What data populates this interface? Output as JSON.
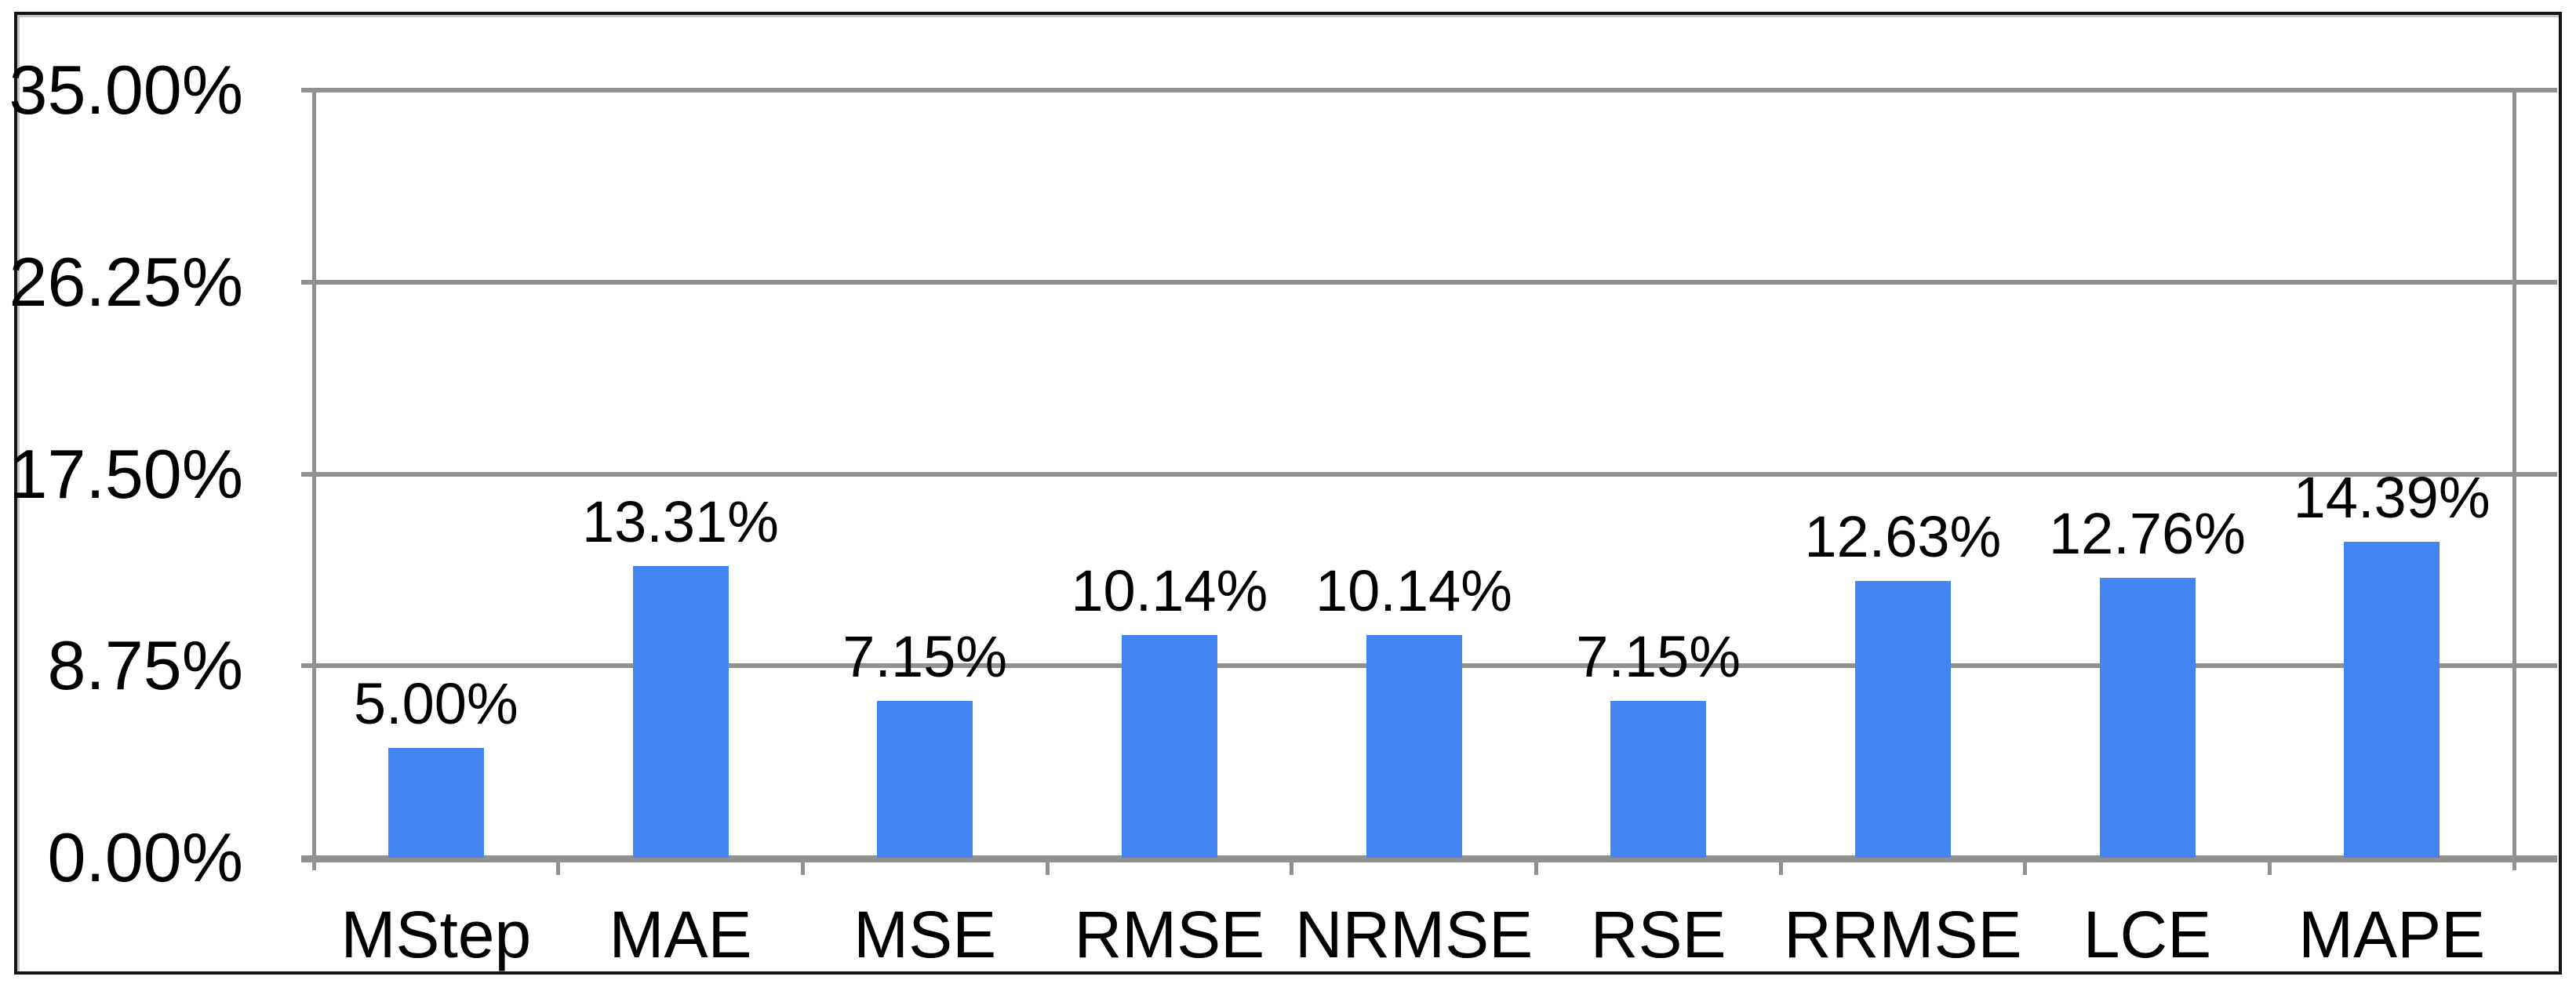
{
  "chart_data": {
    "type": "bar",
    "categories": [
      "MStep",
      "MAE",
      "MSE",
      "RMSE",
      "NRMSE",
      "RSE",
      "RRMSE",
      "LCE",
      "MAPE"
    ],
    "values": [
      5.0,
      13.31,
      7.15,
      10.14,
      10.14,
      7.15,
      12.63,
      12.76,
      14.39
    ],
    "value_labels": [
      "5.00%",
      "13.31%",
      "7.15%",
      "10.14%",
      "10.14%",
      "7.15%",
      "12.63%",
      "12.76%",
      "14.39%"
    ],
    "y_ticks": [
      35,
      26.25,
      17.5,
      8.75,
      0
    ],
    "y_tick_labels": [
      "35.00%",
      "26.25%",
      "17.50%",
      "8.75%",
      "0.00%"
    ],
    "ylim": [
      0,
      35
    ],
    "title": "",
    "xlabel": "",
    "ylabel": "",
    "grid": true,
    "legend_position": "none",
    "colors": {
      "bar": "#4484F0",
      "grid": "#919191",
      "text": "#000000",
      "frame_border": "#141414",
      "background": "#FFFFFF"
    }
  }
}
